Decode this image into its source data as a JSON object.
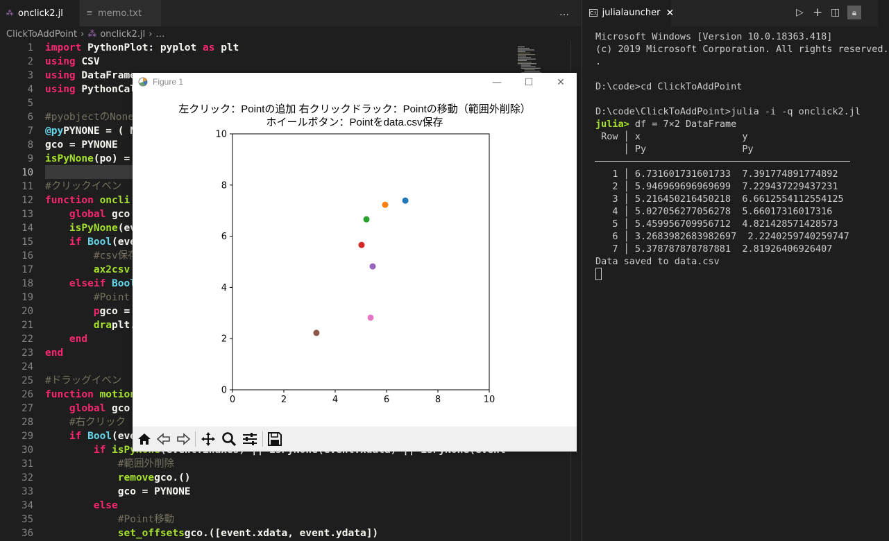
{
  "editor": {
    "tabs": [
      {
        "label": "onclick2.jl",
        "active": true
      },
      {
        "label": "memo.txt",
        "active": false
      }
    ],
    "more_icon": "…",
    "breadcrumb": [
      "ClickToAddPoint",
      "onclick2.jl",
      "…"
    ],
    "current_line": 10,
    "line_numbers": [
      "1",
      "2",
      "3",
      "4",
      "5",
      "6",
      "7",
      "8",
      "9",
      "10",
      "11",
      "12",
      "13",
      "14",
      "15",
      "16",
      "17",
      "18",
      "19",
      "20",
      "21",
      "22",
      "23",
      "24",
      "25",
      "26",
      "27",
      "28",
      "29",
      "30",
      "31",
      "32",
      "33",
      "34",
      "35",
      "36"
    ]
  },
  "code_lines": [
    {
      "indent": "",
      "k": "import",
      "t": " PythonPlot: pyplot ",
      "k2": "as",
      "t2": " plt"
    },
    {
      "indent": "",
      "k": "using",
      "t": " CSV"
    },
    {
      "indent": "",
      "k": "using",
      "t": " DataFrame"
    },
    {
      "indent": "",
      "k": "using",
      "t": " PythonCal"
    },
    {
      "indent": "",
      "c": ""
    },
    {
      "indent": "",
      "c": "#pyobjectのNone"
    },
    {
      "indent": "",
      "t": "PYNONE = (",
      "m": "@py",
      "t2": " N"
    },
    {
      "indent": "",
      "t": "gco = PYNONE"
    },
    {
      "indent": "",
      "f": "isPyNone",
      "t": "(po) ="
    },
    {
      "indent": "",
      "t": ""
    },
    {
      "indent": "",
      "c": "#クリックイベン"
    },
    {
      "indent": "",
      "k": "function",
      "f": " oncli"
    },
    {
      "indent": "    ",
      "k": "global",
      "t": " gco"
    },
    {
      "indent": "    ",
      "f": "isPyNone",
      "t": "(eve"
    },
    {
      "indent": "    ",
      "k": "if",
      "y": " Bool",
      "t": "(eve"
    },
    {
      "indent": "        ",
      "c": "#csv保存"
    },
    {
      "indent": "        ",
      "f": "ax2csv"
    },
    {
      "indent": "    ",
      "k": "elseif",
      "y": " Bool"
    },
    {
      "indent": "        ",
      "c": "#Point"
    },
    {
      "indent": "        ",
      "t": "gco = ",
      "k": "p"
    },
    {
      "indent": "        ",
      "t": "plt.",
      "f": "dra"
    },
    {
      "indent": "    ",
      "k": "end"
    },
    {
      "indent": "",
      "k": "end"
    },
    {
      "indent": "",
      "t": ""
    },
    {
      "indent": "",
      "c": "#ドラッグイベン"
    },
    {
      "indent": "",
      "k": "function",
      "f": " motion"
    },
    {
      "indent": "    ",
      "k": "global",
      "t": " gco"
    },
    {
      "indent": "    ",
      "c": "#右クリック"
    },
    {
      "indent": "    ",
      "k": "if",
      "y": " Bool",
      "t": "(eve"
    },
    {
      "indent": "        ",
      "k": "if",
      "f": " isPyNone",
      "t": "(event.inaxes) || isPyNone(event.xdata) || isPyNone(event"
    },
    {
      "indent": "            ",
      "c": "#範囲外削除"
    },
    {
      "indent": "            ",
      "t": "gco.",
      "f": "remove",
      "t2": "()"
    },
    {
      "indent": "            ",
      "t": "gco = PYNONE"
    },
    {
      "indent": "        ",
      "k": "else"
    },
    {
      "indent": "            ",
      "c": "#Point移動"
    },
    {
      "indent": "            ",
      "t": "gco.",
      "f": "set_offsets",
      "t2": "([event.xdata, event.ydata])"
    }
  ],
  "terminal": {
    "tab_label": "julialauncher",
    "lines": [
      "Microsoft Windows [Version 10.0.18363.418]",
      "(c) 2019 Microsoft Corporation. All rights reserved.",
      ".",
      "",
      "D:\\code>cd ClickToAddPoint",
      "",
      "D:\\code\\ClickToAddPoint>julia -i -q onclick2.jl"
    ],
    "prompt": "julia>",
    "command": " df = 7×2 DataFrame",
    "df_header_1": " Row │ x                  y",
    "df_header_2": "     │ Py                 Py",
    "df_rows": [
      "   1 │ 6.731601731601733  7.391774891774892",
      "   2 │ 5.946969696969699  7.229437229437231",
      "   3 │ 5.216450216450218  6.6612554112554125",
      "   4 │ 5.027056277056278  5.66017316017316",
      "   5 │ 5.459956709956712  4.821428571428573",
      "   6 │ 3.2683982683982697  2.2240259740259747",
      "   7 │ 5.378787878787881  2.81926406926407"
    ],
    "saved_msg": "Data saved to data.csv"
  },
  "figure": {
    "window_title": "Figure 1",
    "title_line1": "左クリック：Pointの追加 右クリックドラック：Pointの移動（範囲外削除）",
    "title_line2": "ホイールボタン：Pointをdata.csv保存",
    "toolbar": [
      "home-icon",
      "back-icon",
      "forward-icon",
      "pan-icon",
      "zoom-icon",
      "configure-icon",
      "save-icon"
    ]
  },
  "chart_data": {
    "type": "scatter",
    "xlim": [
      0,
      10
    ],
    "ylim": [
      0,
      10
    ],
    "xticks": [
      0,
      2,
      4,
      6,
      8,
      10
    ],
    "yticks": [
      0,
      2,
      4,
      6,
      8,
      10
    ],
    "grid": false,
    "points": [
      {
        "x": 6.731601731601733,
        "y": 7.391774891774892,
        "color": "#1f77b4"
      },
      {
        "x": 5.946969696969699,
        "y": 7.229437229437231,
        "color": "#ff7f0e"
      },
      {
        "x": 5.216450216450218,
        "y": 6.6612554112554125,
        "color": "#2ca02c"
      },
      {
        "x": 5.027056277056278,
        "y": 5.66017316017316,
        "color": "#d62728"
      },
      {
        "x": 5.459956709956712,
        "y": 4.821428571428573,
        "color": "#9467bd"
      },
      {
        "x": 3.2683982683982697,
        "y": 2.2240259740259747,
        "color": "#8c564b"
      },
      {
        "x": 5.378787878787881,
        "y": 2.81926406926407,
        "color": "#e377c2"
      }
    ]
  }
}
